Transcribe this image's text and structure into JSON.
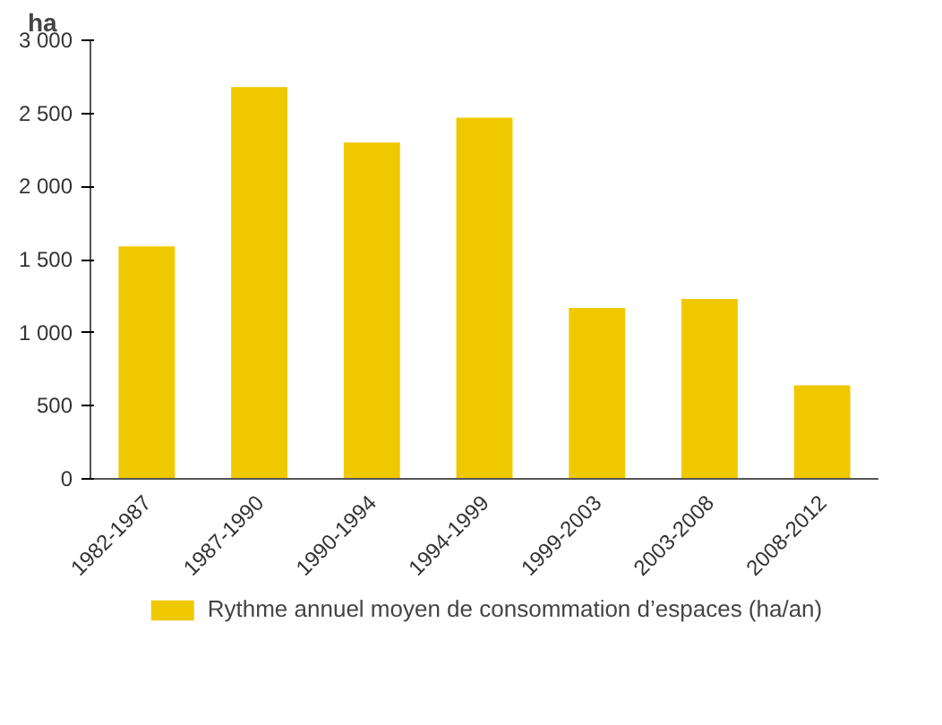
{
  "chart_data": {
    "type": "bar",
    "ylabel": "ha",
    "categories": [
      "1982-1987",
      "1987-1990",
      "1990-1994",
      "1994-1999",
      "1999-2003",
      "2003-2008",
      "2008-2012"
    ],
    "series": [
      {
        "name": "Rythme annuel moyen de consommation d’espaces (ha/an)",
        "color": "#f0c800",
        "values": [
          1590,
          2680,
          2300,
          2470,
          1170,
          1230,
          640
        ]
      }
    ],
    "ylim": [
      0,
      3000
    ],
    "yticks": [
      0,
      500,
      {
        "value": 1000,
        "label": "1 000"
      },
      {
        "value": 1500,
        "label": "1 500"
      },
      {
        "value": 2000,
        "label": "2 000"
      },
      {
        "value": 2500,
        "label": "2 500"
      },
      {
        "value": 3000,
        "label": "3 000"
      }
    ],
    "grid": false,
    "legend": "bottom"
  }
}
